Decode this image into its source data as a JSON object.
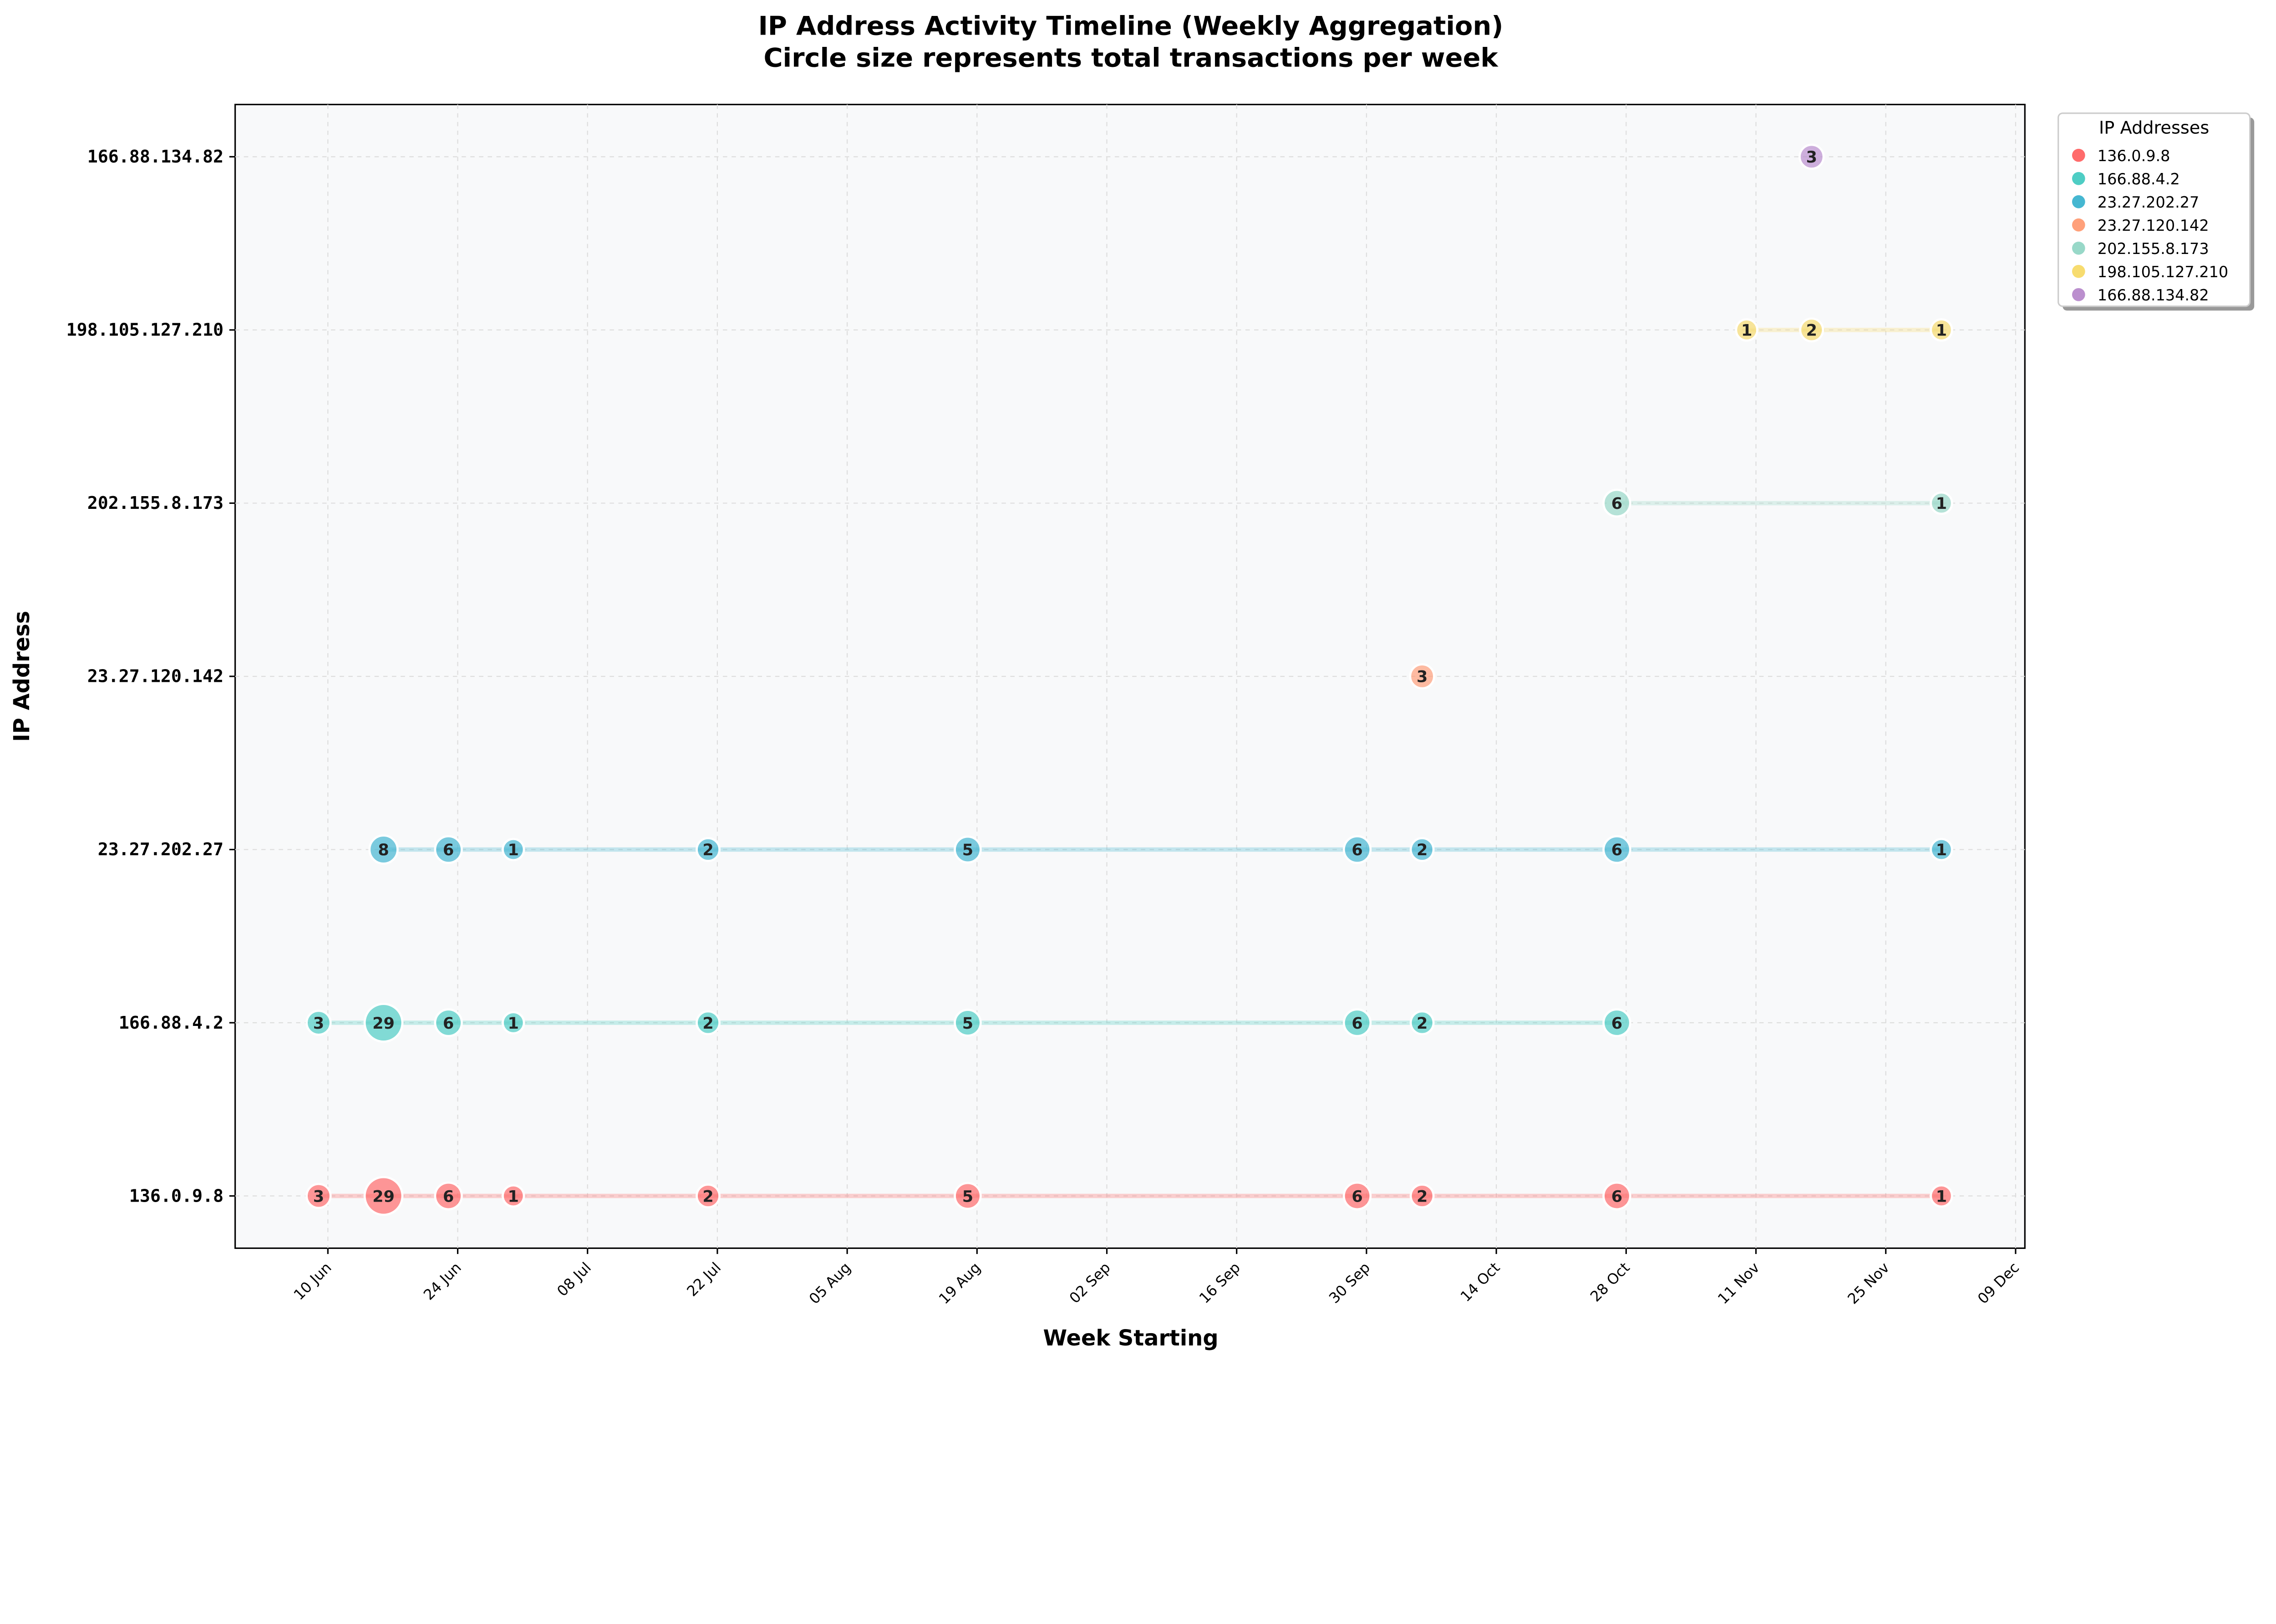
{
  "chart_data": {
    "type": "scatter",
    "title": "IP Address Activity Timeline (Weekly Aggregation)",
    "subtitle": "Circle size represents total transactions per week",
    "xlabel": "Week Starting",
    "ylabel": "IP Address",
    "xlim": [
      "2024-05-31",
      "2024-12-10"
    ],
    "x_ticks": [
      {
        "date": "2024-06-10",
        "label": "10 Jun"
      },
      {
        "date": "2024-06-24",
        "label": "24 Jun"
      },
      {
        "date": "2024-07-08",
        "label": "08 Jul"
      },
      {
        "date": "2024-07-22",
        "label": "22 Jul"
      },
      {
        "date": "2024-08-05",
        "label": "05 Aug"
      },
      {
        "date": "2024-08-19",
        "label": "19 Aug"
      },
      {
        "date": "2024-09-02",
        "label": "02 Sep"
      },
      {
        "date": "2024-09-16",
        "label": "16 Sep"
      },
      {
        "date": "2024-09-30",
        "label": "30 Sep"
      },
      {
        "date": "2024-10-14",
        "label": "14 Oct"
      },
      {
        "date": "2024-10-28",
        "label": "28 Oct"
      },
      {
        "date": "2024-11-11",
        "label": "11 Nov"
      },
      {
        "date": "2024-11-25",
        "label": "25 Nov"
      },
      {
        "date": "2024-12-09",
        "label": "09 Dec"
      }
    ],
    "grid": true,
    "legend": {
      "title": "IP Addresses",
      "placement": "outside-top-right"
    },
    "series": [
      {
        "name": "136.0.9.8",
        "color": "#FF6B6B",
        "points": [
          {
            "x": "2024-06-09",
            "y": 3
          },
          {
            "x": "2024-06-16",
            "y": 29
          },
          {
            "x": "2024-06-23",
            "y": 6
          },
          {
            "x": "2024-06-30",
            "y": 1
          },
          {
            "x": "2024-07-21",
            "y": 2
          },
          {
            "x": "2024-08-18",
            "y": 5
          },
          {
            "x": "2024-09-29",
            "y": 6
          },
          {
            "x": "2024-10-06",
            "y": 2
          },
          {
            "x": "2024-10-27",
            "y": 6
          },
          {
            "x": "2024-12-01",
            "y": 1
          }
        ]
      },
      {
        "name": "166.88.4.2",
        "color": "#4ECDC4",
        "points": [
          {
            "x": "2024-06-09",
            "y": 3
          },
          {
            "x": "2024-06-16",
            "y": 29
          },
          {
            "x": "2024-06-23",
            "y": 6
          },
          {
            "x": "2024-06-30",
            "y": 1
          },
          {
            "x": "2024-07-21",
            "y": 2
          },
          {
            "x": "2024-08-18",
            "y": 5
          },
          {
            "x": "2024-09-29",
            "y": 6
          },
          {
            "x": "2024-10-06",
            "y": 2
          },
          {
            "x": "2024-10-27",
            "y": 6
          }
        ]
      },
      {
        "name": "23.27.202.27",
        "color": "#45B7D1",
        "points": [
          {
            "x": "2024-06-16",
            "y": 8
          },
          {
            "x": "2024-06-23",
            "y": 6
          },
          {
            "x": "2024-06-30",
            "y": 1
          },
          {
            "x": "2024-07-21",
            "y": 2
          },
          {
            "x": "2024-08-18",
            "y": 5
          },
          {
            "x": "2024-09-29",
            "y": 6
          },
          {
            "x": "2024-10-06",
            "y": 2
          },
          {
            "x": "2024-10-27",
            "y": 6
          },
          {
            "x": "2024-12-01",
            "y": 1
          }
        ]
      },
      {
        "name": "23.27.120.142",
        "color": "#FFA07A",
        "points": [
          {
            "x": "2024-10-06",
            "y": 3
          }
        ]
      },
      {
        "name": "202.155.8.173",
        "color": "#98D8C8",
        "points": [
          {
            "x": "2024-10-27",
            "y": 6
          },
          {
            "x": "2024-12-01",
            "y": 1
          }
        ]
      },
      {
        "name": "198.105.127.210",
        "color": "#F7DC6F",
        "points": [
          {
            "x": "2024-11-10",
            "y": 1
          },
          {
            "x": "2024-11-17",
            "y": 2
          },
          {
            "x": "2024-12-01",
            "y": 1
          }
        ]
      },
      {
        "name": "166.88.134.82",
        "color": "#BB8FCE",
        "points": [
          {
            "x": "2024-11-17",
            "y": 3
          }
        ]
      }
    ]
  }
}
